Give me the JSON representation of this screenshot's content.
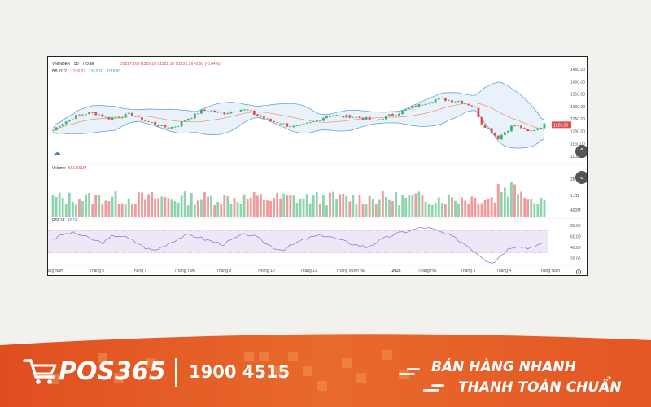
{
  "chart_header": {
    "symbol": "VNINDEX · 1D · HOSE",
    "ohlc": "O1227.26  H1229.10  L1222.30  C1226.30  -0.50 (-0.04%)",
    "bb_label": "BB 20 2",
    "bb_basis": "1216.52",
    "bb_upper": "1313.10",
    "bb_lower": "1119.93",
    "volume_label": "Volume",
    "volume_value": "561.661M",
    "rsi_label": "RSI 14",
    "rsi_value": "46.54",
    "last_price_tag": "1226.30"
  },
  "colors": {
    "up": "#3cb371",
    "down": "#e05050",
    "band": "#4a9ad8",
    "basis": "#e8884a",
    "rsi": "#8a6cc8"
  },
  "chart_data": [
    {
      "type": "candlestick",
      "title": "VNINDEX · 1D · HOSE",
      "x_tick_labels": [
        "Tháng Năm",
        "Tháng 6",
        "Tháng 7",
        "Tháng Tám",
        "Tháng 9",
        "Tháng 10",
        "Tháng 11",
        "Tháng Mười hai",
        "2025",
        "Tháng Hai",
        "Tháng 3",
        "Tháng 4",
        "Tháng Năm"
      ],
      "y_tick_labels": [
        "1450.00",
        "1400.00",
        "1350.00",
        "1300.00",
        "1250.00",
        "1200.00",
        "1150.00",
        "1100.00"
      ],
      "ylim": [
        1080,
        1460
      ],
      "series": [
        {
          "name": "VNINDEX",
          "close_profile": [
            1205,
            1230,
            1245,
            1262,
            1270,
            1275,
            1268,
            1252,
            1258,
            1262,
            1270,
            1252,
            1240,
            1232,
            1218,
            1215,
            1224,
            1248,
            1262,
            1282,
            1285,
            1276,
            1274,
            1282,
            1288,
            1284,
            1266,
            1254,
            1240,
            1236,
            1224,
            1218,
            1222,
            1234,
            1246,
            1262,
            1266,
            1258,
            1262,
            1256,
            1252,
            1242,
            1250,
            1262,
            1272,
            1282,
            1296,
            1305,
            1320,
            1328,
            1330,
            1324,
            1322,
            1312,
            1300,
            1230,
            1208,
            1172,
            1200,
            1224,
            1216,
            1196,
            1212,
            1226
          ]
        },
        {
          "name": "BB 20 2",
          "basis": 1216.52,
          "upper": 1313.1,
          "lower": 1119.93
        }
      ]
    },
    {
      "type": "bar",
      "title": "Volume",
      "latest_value": "561.661M",
      "y_tick_labels": [
        "2B",
        "1.2B",
        "400M"
      ]
    },
    {
      "type": "line",
      "title": "RSI 14",
      "latest_value": 46.54,
      "ylim": [
        10,
        90
      ],
      "y_tick_labels": [
        "80.00",
        "60.00",
        "40.00",
        "20.00"
      ],
      "bands": [
        30,
        70
      ],
      "profile": [
        55,
        62,
        66,
        64,
        58,
        52,
        48,
        60,
        62,
        55,
        48,
        38,
        34,
        42,
        50,
        58,
        62,
        60,
        54,
        50,
        45,
        52,
        60,
        64,
        58,
        48,
        40,
        35,
        42,
        50,
        56,
        60,
        62,
        58,
        52,
        48,
        44,
        40,
        48,
        55,
        62,
        66,
        70,
        74,
        76,
        72,
        66,
        60,
        52,
        42,
        30,
        18,
        12,
        28,
        40,
        44,
        38,
        44,
        46
      ]
    }
  ],
  "footer": {
    "logo": "POS365",
    "phone": "1900 4515",
    "slogan_1": "BÁN HÀNG NHANH",
    "slogan_2": "THANH TOÁN CHUẨN"
  }
}
